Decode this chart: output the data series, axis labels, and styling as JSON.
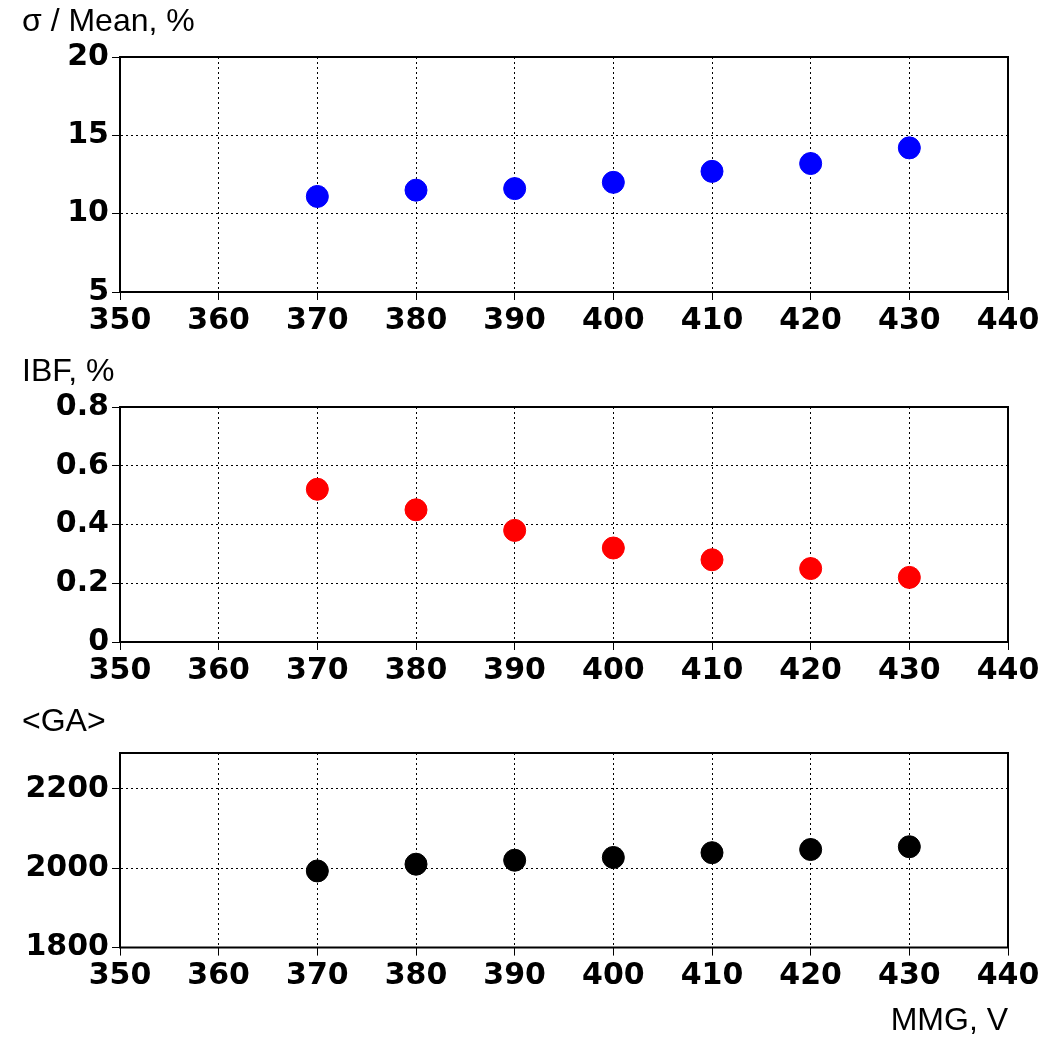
{
  "chart_data": [
    {
      "type": "scatter",
      "ylabel": "σ / Mean, %",
      "x": [
        370,
        380,
        390,
        400,
        410,
        420,
        430
      ],
      "series": [
        {
          "color": "#0000ff",
          "values": [
            11.1,
            11.5,
            11.6,
            12.0,
            12.7,
            13.2,
            14.2
          ]
        }
      ],
      "xlim": [
        350,
        440
      ],
      "xticks": [
        350,
        360,
        370,
        380,
        390,
        400,
        410,
        420,
        430,
        440
      ],
      "ylim": [
        5,
        20
      ],
      "yticks": [
        5,
        10,
        15,
        20
      ],
      "grid": true,
      "marker": "circle"
    },
    {
      "type": "scatter",
      "ylabel": "IBF, %",
      "x": [
        370,
        380,
        390,
        400,
        410,
        420,
        430
      ],
      "series": [
        {
          "color": "#ff0000",
          "values": [
            0.52,
            0.45,
            0.38,
            0.32,
            0.28,
            0.25,
            0.22
          ]
        }
      ],
      "xlim": [
        350,
        440
      ],
      "xticks": [
        350,
        360,
        370,
        380,
        390,
        400,
        410,
        420,
        430,
        440
      ],
      "ylim": [
        0,
        0.8
      ],
      "yticks": [
        {
          "value": 0,
          "label": "0"
        },
        {
          "value": 0.2,
          "label": "0.2"
        },
        {
          "value": 0.4,
          "label": "0.4"
        },
        {
          "value": 0.6,
          "label": "0.6"
        },
        {
          "value": 0.8,
          "label": "0.8"
        }
      ],
      "grid": true,
      "marker": "circle"
    },
    {
      "type": "scatter",
      "ylabel": "<GA>",
      "xlabel": "MMG, V",
      "x": [
        370,
        380,
        390,
        400,
        410,
        420,
        430
      ],
      "series": [
        {
          "color": "#000000",
          "values": [
            1993,
            2010,
            2020,
            2027,
            2039,
            2047,
            2054
          ]
        }
      ],
      "xlim": [
        350,
        440
      ],
      "xticks": [
        350,
        360,
        370,
        380,
        390,
        400,
        410,
        420,
        430,
        440
      ],
      "ylim": [
        1800,
        2290
      ],
      "yticks": [
        1800,
        2000,
        2200
      ],
      "grid": true,
      "marker": "circle"
    }
  ]
}
